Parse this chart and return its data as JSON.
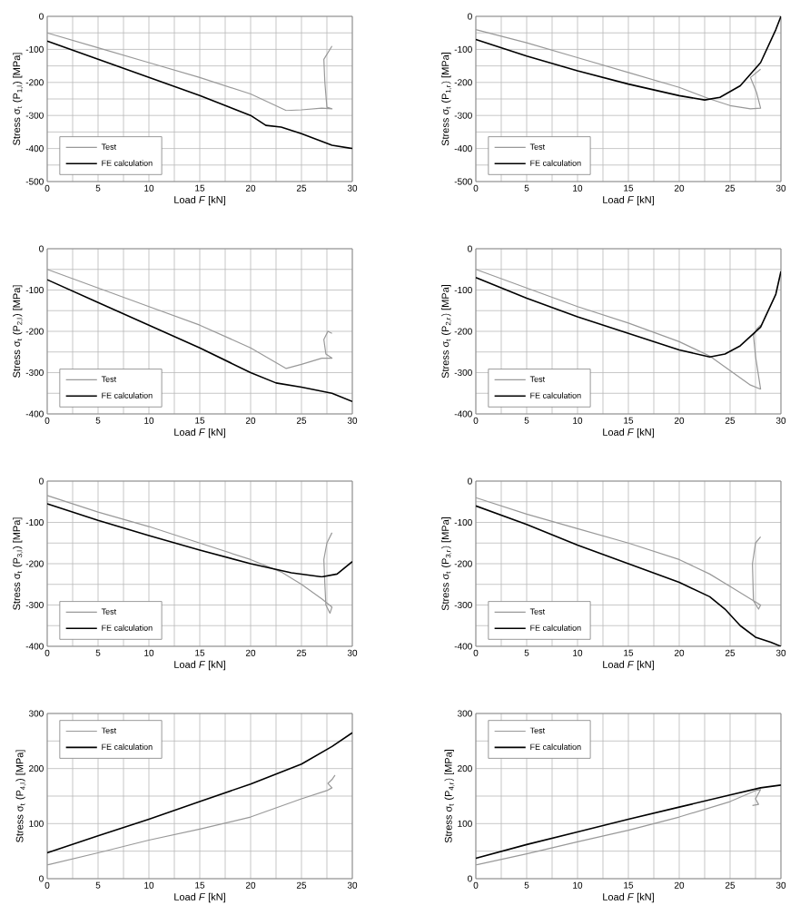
{
  "chart_data": [
    {
      "type": "line",
      "xlabel": "Load *F* [kN]",
      "ylabel": "Stress σ$_{t}$ (P$_{1,l}$) [MPa]",
      "xlim": [
        0,
        30
      ],
      "ylim": [
        -500,
        0
      ],
      "xticks": [
        0,
        {
          "value": 2.5,
          "label": null
        },
        5,
        {
          "value": 7.5,
          "label": null
        },
        10,
        {
          "value": 12.5,
          "label": null
        },
        15,
        {
          "value": 17.5,
          "label": null
        },
        20,
        {
          "value": 22.5,
          "label": null
        },
        25,
        {
          "value": 27.5,
          "label": null
        },
        30
      ],
      "yticks": [
        -500,
        {
          "value": -450,
          "label": null
        },
        -400,
        {
          "value": -350,
          "label": null
        },
        -300,
        {
          "value": -250,
          "label": null
        },
        -200,
        {
          "value": -150,
          "label": null
        },
        -100,
        {
          "value": -50,
          "label": null
        },
        0
      ],
      "grid": true,
      "legend": "bottom left",
      "series": [
        {
          "name": "Test",
          "color": "#999999",
          "x": [
            0,
            5,
            10,
            15,
            20,
            23.5,
            25,
            27,
            28,
            27.5,
            27.3,
            27.2,
            28
          ],
          "values": [
            -50,
            -95,
            -140,
            -185,
            -235,
            -285,
            -283,
            -278,
            -280,
            -275,
            -200,
            -130,
            -90
          ]
        },
        {
          "name": "FE calculation",
          "color": "#000000",
          "x": [
            0,
            5,
            10,
            15,
            20,
            21.5,
            23,
            25,
            28,
            30
          ],
          "values": [
            -75,
            -130,
            -185,
            -240,
            -300,
            -330,
            -335,
            -355,
            -390,
            -400
          ]
        }
      ]
    },
    {
      "type": "line",
      "xlabel": "Load *F* [kN]",
      "ylabel": "Stress σ$_{t}$ (P$_{1,r}$) [MPa]",
      "xlim": [
        0,
        30
      ],
      "ylim": [
        -500,
        0
      ],
      "xticks": [
        0,
        {
          "value": 2.5,
          "label": null
        },
        5,
        {
          "value": 7.5,
          "label": null
        },
        10,
        {
          "value": 12.5,
          "label": null
        },
        15,
        {
          "value": 17.5,
          "label": null
        },
        20,
        {
          "value": 22.5,
          "label": null
        },
        25,
        {
          "value": 27.5,
          "label": null
        },
        30
      ],
      "yticks": [
        -500,
        {
          "value": -450,
          "label": null
        },
        -400,
        {
          "value": -350,
          "label": null
        },
        -300,
        {
          "value": -250,
          "label": null
        },
        -200,
        {
          "value": -150,
          "label": null
        },
        -100,
        {
          "value": -50,
          "label": null
        },
        0
      ],
      "grid": true,
      "legend": "bottom left",
      "series": [
        {
          "name": "Test",
          "color": "#999999",
          "x": [
            0,
            5,
            10,
            15,
            20,
            23,
            25,
            27,
            28,
            27.6,
            27,
            28
          ],
          "values": [
            -40,
            -80,
            -125,
            -170,
            -215,
            -250,
            -270,
            -280,
            -278,
            -230,
            -185,
            -160
          ]
        },
        {
          "name": "FE calculation",
          "color": "#000000",
          "x": [
            0,
            5,
            10,
            15,
            20,
            22.5,
            24,
            26,
            28,
            29.5,
            30
          ],
          "values": [
            -70,
            -120,
            -165,
            -205,
            -240,
            -253,
            -245,
            -210,
            -140,
            -40,
            0
          ]
        }
      ]
    },
    {
      "type": "line",
      "xlabel": "Load *F* [kN]",
      "ylabel": "Stress σ$_{t}$ (P$_{2,l}$) [MPa]",
      "xlim": [
        0,
        30
      ],
      "ylim": [
        -400,
        0
      ],
      "xticks": [
        0,
        {
          "value": 2.5,
          "label": null
        },
        5,
        {
          "value": 7.5,
          "label": null
        },
        10,
        {
          "value": 12.5,
          "label": null
        },
        15,
        {
          "value": 17.5,
          "label": null
        },
        20,
        {
          "value": 22.5,
          "label": null
        },
        25,
        {
          "value": 27.5,
          "label": null
        },
        30
      ],
      "yticks": [
        -400,
        {
          "value": -350,
          "label": null
        },
        -300,
        {
          "value": -250,
          "label": null
        },
        -200,
        {
          "value": -150,
          "label": null
        },
        -100,
        {
          "value": -50,
          "label": null
        },
        0
      ],
      "grid": true,
      "legend": "bottom left",
      "series": [
        {
          "name": "Test",
          "color": "#999999",
          "x": [
            0,
            5,
            10,
            15,
            20,
            23.5,
            25,
            27,
            28,
            27.4,
            27.2,
            27.6,
            28
          ],
          "values": [
            -50,
            -95,
            -140,
            -185,
            -240,
            -290,
            -280,
            -265,
            -265,
            -255,
            -220,
            -200,
            -205
          ]
        },
        {
          "name": "FE calculation",
          "color": "#000000",
          "x": [
            0,
            5,
            10,
            15,
            20,
            22.5,
            25,
            28,
            30
          ],
          "values": [
            -75,
            -130,
            -185,
            -240,
            -300,
            -325,
            -335,
            -350,
            -370
          ]
        }
      ]
    },
    {
      "type": "line",
      "xlabel": "Load *F* [kN]",
      "ylabel": "Stress σ$_{t}$ (P$_{2,r}$) [MPa]",
      "xlim": [
        0,
        30
      ],
      "ylim": [
        -400,
        0
      ],
      "xticks": [
        0,
        {
          "value": 2.5,
          "label": null
        },
        5,
        {
          "value": 7.5,
          "label": null
        },
        10,
        {
          "value": 12.5,
          "label": null
        },
        15,
        {
          "value": 17.5,
          "label": null
        },
        20,
        {
          "value": 22.5,
          "label": null
        },
        25,
        {
          "value": 27.5,
          "label": null
        },
        30
      ],
      "yticks": [
        -400,
        {
          "value": -350,
          "label": null
        },
        -300,
        {
          "value": -250,
          "label": null
        },
        -200,
        {
          "value": -150,
          "label": null
        },
        -100,
        {
          "value": -50,
          "label": null
        },
        0
      ],
      "grid": true,
      "legend": "bottom left",
      "series": [
        {
          "name": "Test",
          "color": "#999999",
          "x": [
            0,
            5,
            10,
            15,
            20,
            23,
            25,
            27,
            28,
            27.5,
            27.3,
            27.6,
            28
          ],
          "values": [
            -50,
            -95,
            -140,
            -180,
            -225,
            -260,
            -295,
            -330,
            -340,
            -260,
            -210,
            -195,
            -185
          ]
        },
        {
          "name": "FE calculation",
          "color": "#000000",
          "x": [
            0,
            5,
            10,
            15,
            20,
            23,
            24.5,
            26,
            28,
            29.5,
            30
          ],
          "values": [
            -70,
            -120,
            -165,
            -205,
            -245,
            -262,
            -255,
            -235,
            -190,
            -110,
            -55
          ]
        }
      ]
    },
    {
      "type": "line",
      "xlabel": "Load *F* [kN]",
      "ylabel": "Stress σ$_{t}$ (P$_{3,l}$) [MPa]",
      "xlim": [
        0,
        30
      ],
      "ylim": [
        -400,
        0
      ],
      "xticks": [
        0,
        {
          "value": 2.5,
          "label": null
        },
        5,
        {
          "value": 7.5,
          "label": null
        },
        10,
        {
          "value": 12.5,
          "label": null
        },
        15,
        {
          "value": 17.5,
          "label": null
        },
        20,
        {
          "value": 22.5,
          "label": null
        },
        25,
        {
          "value": 27.5,
          "label": null
        },
        30
      ],
      "yticks": [
        -400,
        {
          "value": -350,
          "label": null
        },
        -300,
        {
          "value": -250,
          "label": null
        },
        -200,
        {
          "value": -150,
          "label": null
        },
        -100,
        {
          "value": -50,
          "label": null
        },
        0
      ],
      "grid": true,
      "legend": "bottom left",
      "series": [
        {
          "name": "Test",
          "color": "#999999",
          "x": [
            0,
            5,
            10,
            15,
            20,
            23,
            25,
            27,
            28,
            27.8,
            27.4,
            27.3,
            27.2,
            27.5,
            28
          ],
          "values": [
            -35,
            -75,
            -110,
            -150,
            -190,
            -220,
            -250,
            -285,
            -305,
            -320,
            -300,
            -250,
            -190,
            -150,
            -125
          ]
        },
        {
          "name": "FE calculation",
          "color": "#000000",
          "x": [
            0,
            5,
            10,
            15,
            20,
            24,
            27,
            28.5,
            30
          ],
          "values": [
            -55,
            -95,
            -132,
            -167,
            -200,
            -222,
            -232,
            -225,
            -195
          ]
        }
      ]
    },
    {
      "type": "line",
      "xlabel": "Load *F* [kN]",
      "ylabel": "Stress σ$_{t}$ (P$_{3,r}$) [MPa]",
      "xlim": [
        0,
        30
      ],
      "ylim": [
        -400,
        0
      ],
      "xticks": [
        0,
        {
          "value": 2.5,
          "label": null
        },
        5,
        {
          "value": 7.5,
          "label": null
        },
        10,
        {
          "value": 12.5,
          "label": null
        },
        15,
        {
          "value": 17.5,
          "label": null
        },
        20,
        {
          "value": 22.5,
          "label": null
        },
        25,
        {
          "value": 27.5,
          "label": null
        },
        30
      ],
      "yticks": [
        -400,
        {
          "value": -350,
          "label": null
        },
        -300,
        {
          "value": -250,
          "label": null
        },
        -200,
        {
          "value": -150,
          "label": null
        },
        -100,
        {
          "value": -50,
          "label": null
        },
        0
      ],
      "grid": true,
      "legend": "bottom left",
      "series": [
        {
          "name": "Test",
          "color": "#999999",
          "x": [
            0,
            5,
            10,
            15,
            20,
            23,
            25,
            27,
            28,
            27.8,
            27.3,
            27.2,
            27.5,
            28
          ],
          "values": [
            -40,
            -80,
            -115,
            -150,
            -190,
            -225,
            -255,
            -285,
            -300,
            -310,
            -290,
            -200,
            -150,
            -135
          ]
        },
        {
          "name": "FE calculation",
          "color": "#000000",
          "x": [
            0,
            5,
            10,
            15,
            20,
            23,
            24.5,
            26,
            27.5,
            29,
            30
          ],
          "values": [
            -60,
            -105,
            -155,
            -200,
            -245,
            -280,
            -310,
            -350,
            -378,
            -390,
            -400
          ]
        }
      ]
    },
    {
      "type": "line",
      "xlabel": "Load *F* [kN]",
      "ylabel": "Stress σ$_{t}$ (P$_{4,l}$) [MPa]",
      "xlim": [
        0,
        30
      ],
      "ylim": [
        0,
        300
      ],
      "xticks": [
        0,
        {
          "value": 2.5,
          "label": null
        },
        5,
        {
          "value": 7.5,
          "label": null
        },
        10,
        {
          "value": 12.5,
          "label": null
        },
        15,
        {
          "value": 17.5,
          "label": null
        },
        20,
        {
          "value": 22.5,
          "label": null
        },
        25,
        {
          "value": 27.5,
          "label": null
        },
        30
      ],
      "yticks": [
        0,
        {
          "value": 50,
          "label": null
        },
        100,
        {
          "value": 150,
          "label": null
        },
        200,
        {
          "value": 250,
          "label": null
        },
        300
      ],
      "grid": true,
      "legend": "top left",
      "series": [
        {
          "name": "Test",
          "color": "#999999",
          "x": [
            0,
            5,
            10,
            15,
            20,
            25,
            27.5,
            28,
            27.6,
            28,
            28.3
          ],
          "values": [
            25,
            47,
            70,
            90,
            112,
            145,
            160,
            165,
            173,
            180,
            188
          ]
        },
        {
          "name": "FE calculation",
          "color": "#000000",
          "x": [
            0,
            5,
            10,
            15,
            20,
            25,
            28,
            30
          ],
          "values": [
            47,
            78,
            108,
            140,
            172,
            208,
            240,
            265
          ]
        }
      ]
    },
    {
      "type": "line",
      "xlabel": "Load *F* [kN]",
      "ylabel": "Stress σ$_{t}$ (P$_{4,r}$) [MPa]",
      "xlim": [
        0,
        30
      ],
      "ylim": [
        0,
        300
      ],
      "xticks": [
        0,
        {
          "value": 2.5,
          "label": null
        },
        5,
        {
          "value": 7.5,
          "label": null
        },
        10,
        {
          "value": 12.5,
          "label": null
        },
        15,
        {
          "value": 17.5,
          "label": null
        },
        20,
        {
          "value": 22.5,
          "label": null
        },
        25,
        {
          "value": 27.5,
          "label": null
        },
        30
      ],
      "yticks": [
        0,
        {
          "value": 50,
          "label": null
        },
        100,
        {
          "value": 150,
          "label": null
        },
        200,
        {
          "value": 250,
          "label": null
        },
        300
      ],
      "grid": true,
      "legend": "top left",
      "series": [
        {
          "name": "Test",
          "color": "#999999",
          "x": [
            0,
            5,
            10,
            15,
            20,
            25,
            27.5,
            28,
            27.5,
            27.8,
            27.2
          ],
          "values": [
            25,
            45,
            67,
            88,
            112,
            140,
            160,
            162,
            145,
            135,
            133
          ]
        },
        {
          "name": "FE calculation",
          "color": "#000000",
          "x": [
            0,
            5,
            10,
            15,
            20,
            25,
            28,
            30
          ],
          "values": [
            37,
            62,
            85,
            108,
            130,
            152,
            165,
            170
          ]
        }
      ]
    }
  ]
}
